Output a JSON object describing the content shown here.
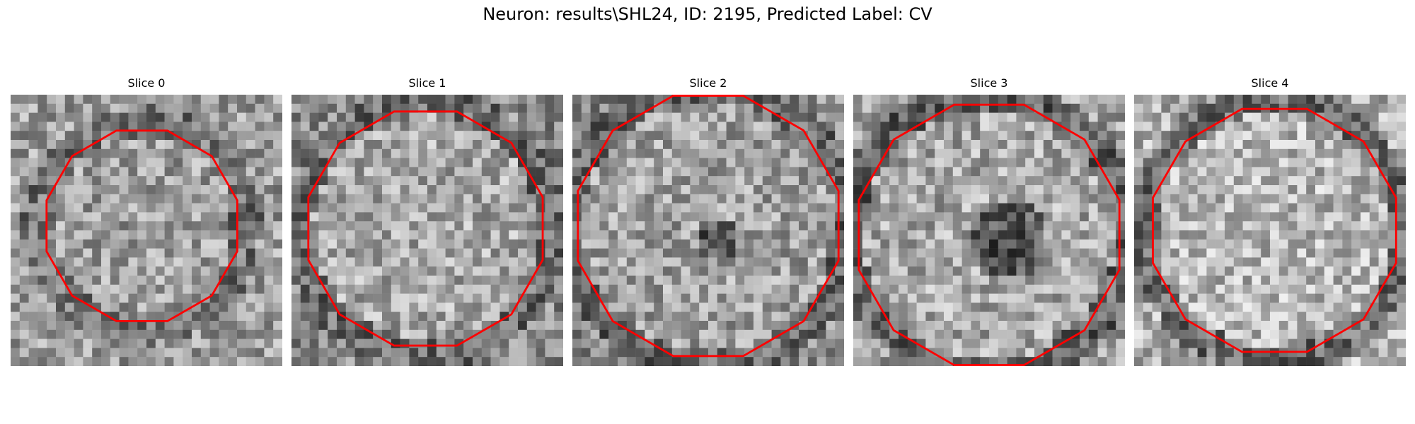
{
  "figure": {
    "title": "Neuron: results\\SHL24, ID: 2195, Predicted Label: CV"
  },
  "panels": [
    {
      "title": "Slice 0"
    },
    {
      "title": "Slice 1"
    },
    {
      "title": "Slice 2"
    },
    {
      "title": "Slice 3"
    },
    {
      "title": "Slice 4"
    }
  ],
  "colors": {
    "contour": "#ff0000",
    "colormap": "gray"
  }
}
